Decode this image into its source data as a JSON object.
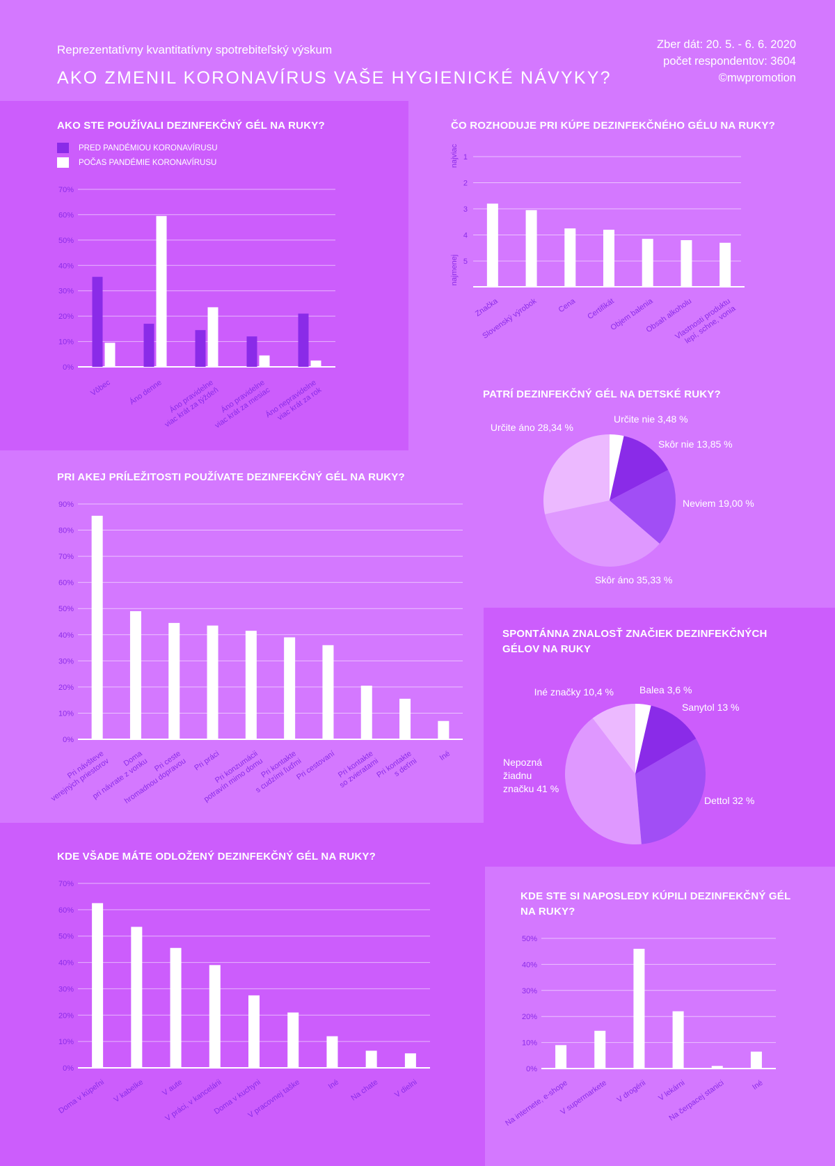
{
  "header": {
    "subtitle": "Reprezentatívny kvantitatívny spotrebiteľský výskum",
    "title": "AKO ZMENIL KORONAVÍRUS VAŠE HYGIENICKÉ NÁVYKY?",
    "meta_dates": "Zber dát: 20. 5. - 6. 6. 2020",
    "meta_respondents": "počet respondentov: 3604",
    "meta_copyright": "©mwpromotion"
  },
  "colors": {
    "background": "#d478ff",
    "panel_dark": "#cc5dfc",
    "bar_white": "#ffffff",
    "bar_purple": "#8a2be8",
    "tick_text": "#8a2be8"
  },
  "chart_data": [
    {
      "id": "gel-usage",
      "type": "bar",
      "title": "AKO STE POUŽÍVALI DEZINFEKČNÝ GÉL NA RUKY?",
      "categories": [
        "Vôbec",
        "Áno denne",
        "Áno pravidelne\nviac krát za týždeň",
        "Áno pravidelne\nviac krát za mesiac",
        "Áno nepravidelne\nviac krát za rok"
      ],
      "series": [
        {
          "name": "PRED PANDÉMIOU KORONAVÍRUSU",
          "color": "#8a2be8",
          "values": [
            35.5,
            17,
            14.5,
            12,
            21
          ]
        },
        {
          "name": "POČAS PANDÉMIE KORONAVÍRUSU",
          "color": "#ffffff",
          "values": [
            9.5,
            59.5,
            23.5,
            4.5,
            2.5
          ]
        }
      ],
      "yticks": [
        "0%",
        "10%",
        "20%",
        "30%",
        "40%",
        "50%",
        "60%",
        "70%"
      ],
      "ylim": [
        0,
        70
      ],
      "legend": "top-left"
    },
    {
      "id": "purchase-factors",
      "type": "bar",
      "title": "ČO ROZHODUJE PRI KÚPE DEZINFEKČNÉHO GÉLU NA RUKY?",
      "categories": [
        "Značka",
        "Slovenský výrobok",
        "Cena",
        "Certifikát",
        "Objem balenia",
        "Obsah alkoholu",
        "Vlastnosti produktu\nlepí, schne, vonia"
      ],
      "values": [
        2.8,
        3.05,
        3.75,
        3.8,
        4.15,
        4.2,
        4.3
      ],
      "yticks": [
        "1",
        "2",
        "3",
        "4",
        "5"
      ],
      "ylabel_top": "najviac",
      "ylabel_bottom": "najmenej",
      "ylim": [
        1,
        6
      ],
      "inverted": true
    },
    {
      "id": "kids-hands",
      "type": "pie",
      "title": "PATRÍ DEZINFEKČNÝ GÉL NA DETSKÉ RUKY?",
      "slices": [
        {
          "label": "Určite nie 3,48 %",
          "value": 3.48,
          "color": "#ffffff"
        },
        {
          "label": "Skôr nie 13,85 %",
          "value": 13.85,
          "color": "#8a2be8"
        },
        {
          "label": "Neviem 19,00 %",
          "value": 19.0,
          "color": "#a14ef5"
        },
        {
          "label": "Skôr áno 35,33 %",
          "value": 35.33,
          "color": "#df98ff"
        },
        {
          "label": "Určite áno 28,34 %",
          "value": 28.34,
          "color": "#ecb9ff"
        }
      ]
    },
    {
      "id": "occasions",
      "type": "bar",
      "title": "PRI AKEJ PRÍLEŽITOSTI POUŽÍVATE DEZINFEKČNÝ GÉL NA RUKY?",
      "categories": [
        "Pri návšteve\nverejných priestorov",
        "Doma\npri návrate z vonku",
        "Pri ceste\nhromadnou dopravou",
        "Pri práci",
        "Pri konzumácii\npotravín mimo domu",
        "Pri kontakte\ns cudzími ľuďmi",
        "Pri cestovaní",
        "Pri kontakte\nso zvieratami",
        "Pri kontakte\ns deťmi",
        "Iné"
      ],
      "values": [
        85.5,
        49,
        44.5,
        43.5,
        41.5,
        39,
        36,
        20.5,
        15.5,
        7
      ],
      "yticks": [
        "0%",
        "10%",
        "20%",
        "30%",
        "40%",
        "50%",
        "60%",
        "70%",
        "80%",
        "90%"
      ],
      "ylim": [
        0,
        90
      ]
    },
    {
      "id": "brand-awareness",
      "type": "pie",
      "title": "SPONTÁNNA ZNALOSŤ ZNAČIEK DEZINFEKČNÝCH\nGÉLOV NA RUKY",
      "slices": [
        {
          "label": "Balea 3,6 %",
          "value": 3.6,
          "color": "#ffffff"
        },
        {
          "label": "Sanytol 13 %",
          "value": 13,
          "color": "#8a2be8"
        },
        {
          "label": "Dettol 32 %",
          "value": 32,
          "color": "#a14ef5"
        },
        {
          "label": "Nepozná\nžiadnu\nznačku 41 %",
          "value": 41,
          "color": "#df98ff"
        },
        {
          "label": "Iné značky 10,4 %",
          "value": 10.4,
          "color": "#ecb9ff"
        }
      ]
    },
    {
      "id": "storage",
      "type": "bar",
      "title": "KDE VŠADE MÁTE ODLOŽENÝ DEZINFEKČNÝ GÉL NA RUKY?",
      "categories": [
        "Doma v kúpeľni",
        "V kabelke",
        "V aute",
        "V práci, v kancelárii",
        "Doma v kuchyni",
        "V pracovnej taške",
        "Iné",
        "Na chate",
        "V dielni"
      ],
      "values": [
        62.5,
        53.5,
        45.5,
        39,
        27.5,
        21,
        12,
        6.5,
        5.5
      ],
      "yticks": [
        "0%",
        "10%",
        "20%",
        "30%",
        "40%",
        "50%",
        "60%",
        "70%"
      ],
      "ylim": [
        0,
        70
      ]
    },
    {
      "id": "last-purchase",
      "type": "bar",
      "title": "KDE STE SI NAPOSLEDY KÚPILI DEZINFEKČNÝ GÉL\nNA RUKY?",
      "categories": [
        "Na internete, e-shope",
        "V supermarkete",
        "V drogérii",
        "V lekárni",
        "Na čerpacej stanici",
        "Iné"
      ],
      "values": [
        9,
        14.5,
        46,
        22,
        1,
        6.5
      ],
      "yticks": [
        "0%",
        "10%",
        "20%",
        "30%",
        "40%",
        "50%"
      ],
      "ylim": [
        0,
        50
      ]
    }
  ]
}
